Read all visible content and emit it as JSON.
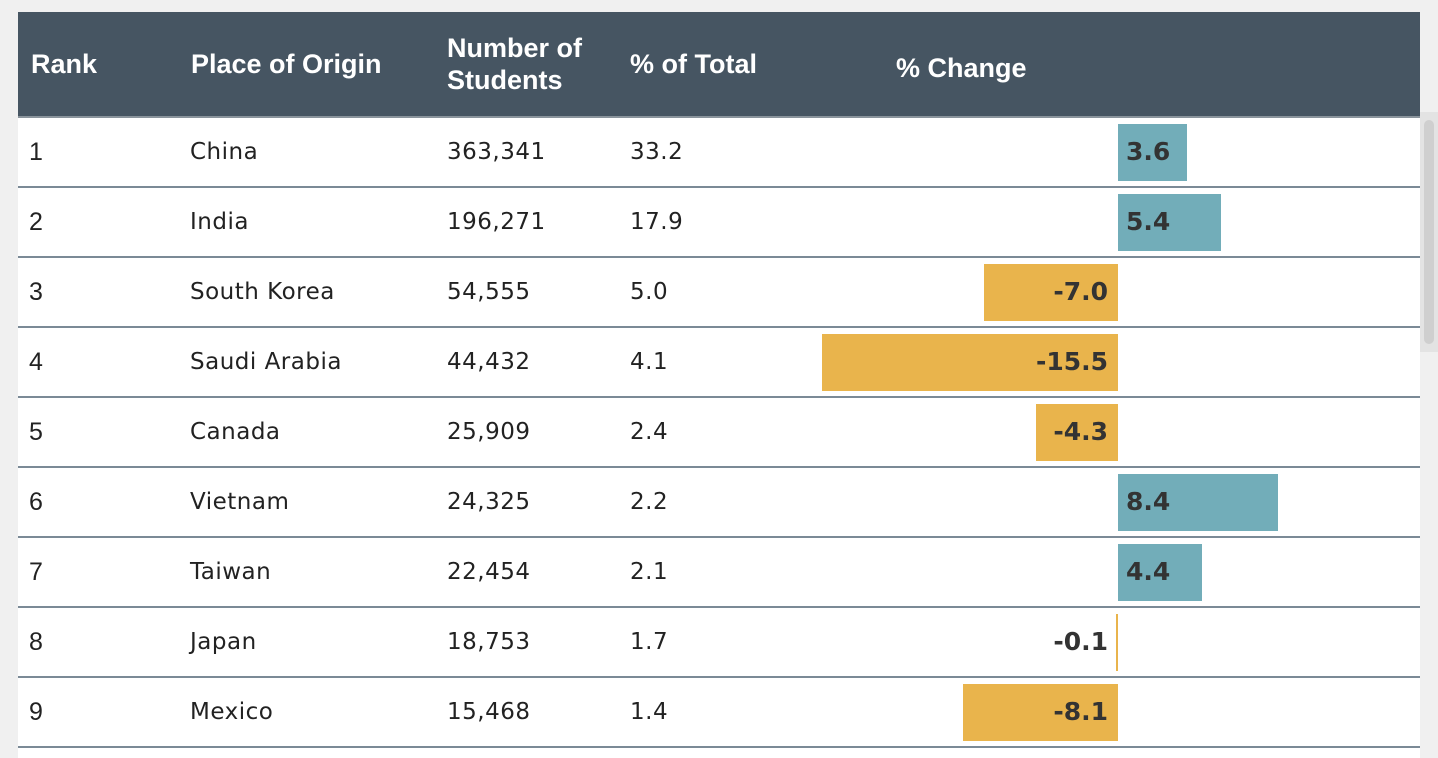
{
  "table": {
    "columns": {
      "rank": "Rank",
      "origin": "Place of Origin",
      "students_line1": "Number of",
      "students_line2": "Students",
      "percent_total": "% of Total",
      "percent_change": "% Change"
    },
    "rows": [
      {
        "rank": "1",
        "origin": "China",
        "students": "363,341",
        "percent_total": "33.2",
        "percent_change": "3.6"
      },
      {
        "rank": "2",
        "origin": "India",
        "students": "196,271",
        "percent_total": "17.9",
        "percent_change": "5.4"
      },
      {
        "rank": "3",
        "origin": "South Korea",
        "students": "54,555",
        "percent_total": "5.0",
        "percent_change": "-7.0"
      },
      {
        "rank": "4",
        "origin": "Saudi Arabia",
        "students": "44,432",
        "percent_total": "4.1",
        "percent_change": "-15.5"
      },
      {
        "rank": "5",
        "origin": "Canada",
        "students": "25,909",
        "percent_total": "2.4",
        "percent_change": "-4.3"
      },
      {
        "rank": "6",
        "origin": "Vietnam",
        "students": "24,325",
        "percent_total": "2.2",
        "percent_change": "8.4"
      },
      {
        "rank": "7",
        "origin": "Taiwan",
        "students": "22,454",
        "percent_total": "2.1",
        "percent_change": "4.4"
      },
      {
        "rank": "8",
        "origin": "Japan",
        "students": "18,753",
        "percent_total": "1.7",
        "percent_change": "-0.1"
      },
      {
        "rank": "9",
        "origin": "Mexico",
        "students": "15,468",
        "percent_total": "1.4",
        "percent_change": "-8.1"
      }
    ]
  },
  "chart_data": {
    "type": "table",
    "columns": [
      "Rank",
      "Place of Origin",
      "Number of Students",
      "% of Total",
      "% Change"
    ],
    "categories": [
      "China",
      "India",
      "South Korea",
      "Saudi Arabia",
      "Canada",
      "Vietnam",
      "Taiwan",
      "Japan",
      "Mexico"
    ],
    "series": [
      {
        "name": "Number of Students",
        "values": [
          363341,
          196271,
          54555,
          44432,
          25909,
          24325,
          22454,
          18753,
          15468
        ]
      },
      {
        "name": "% of Total",
        "values": [
          33.2,
          17.9,
          5.0,
          4.1,
          2.4,
          2.2,
          2.1,
          1.7,
          1.4
        ]
      },
      {
        "name": "% Change",
        "values": [
          3.6,
          5.4,
          -7.0,
          -15.5,
          -4.3,
          8.4,
          4.4,
          -0.1,
          -8.1
        ]
      }
    ],
    "colors": {
      "positive": "#72adb9",
      "negative": "#e9b44c",
      "header": "#465562"
    }
  }
}
